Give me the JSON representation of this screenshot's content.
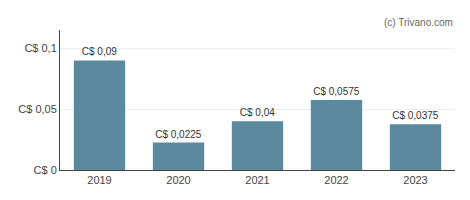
{
  "chart_data": {
    "type": "bar",
    "categories": [
      "2019",
      "2020",
      "2021",
      "2022",
      "2023"
    ],
    "values": [
      0.09,
      0.0225,
      0.04,
      0.0575,
      0.0375
    ],
    "value_labels": [
      "C$ 0,09",
      "C$ 0,0225",
      "C$ 0,04",
      "C$ 0,0575",
      "C$ 0,0375"
    ],
    "data_labels": true,
    "color": "#5b8a9f",
    "ylim": [
      0,
      0.115
    ],
    "yticks": [
      {
        "value": 0,
        "label": "C$ 0"
      },
      {
        "value": 0.05,
        "label": "C$ 0,05"
      },
      {
        "value": 0.1,
        "label": "C$ 0,1"
      }
    ],
    "grid": true,
    "annotations": [
      "(c) Trivano.com"
    ]
  }
}
